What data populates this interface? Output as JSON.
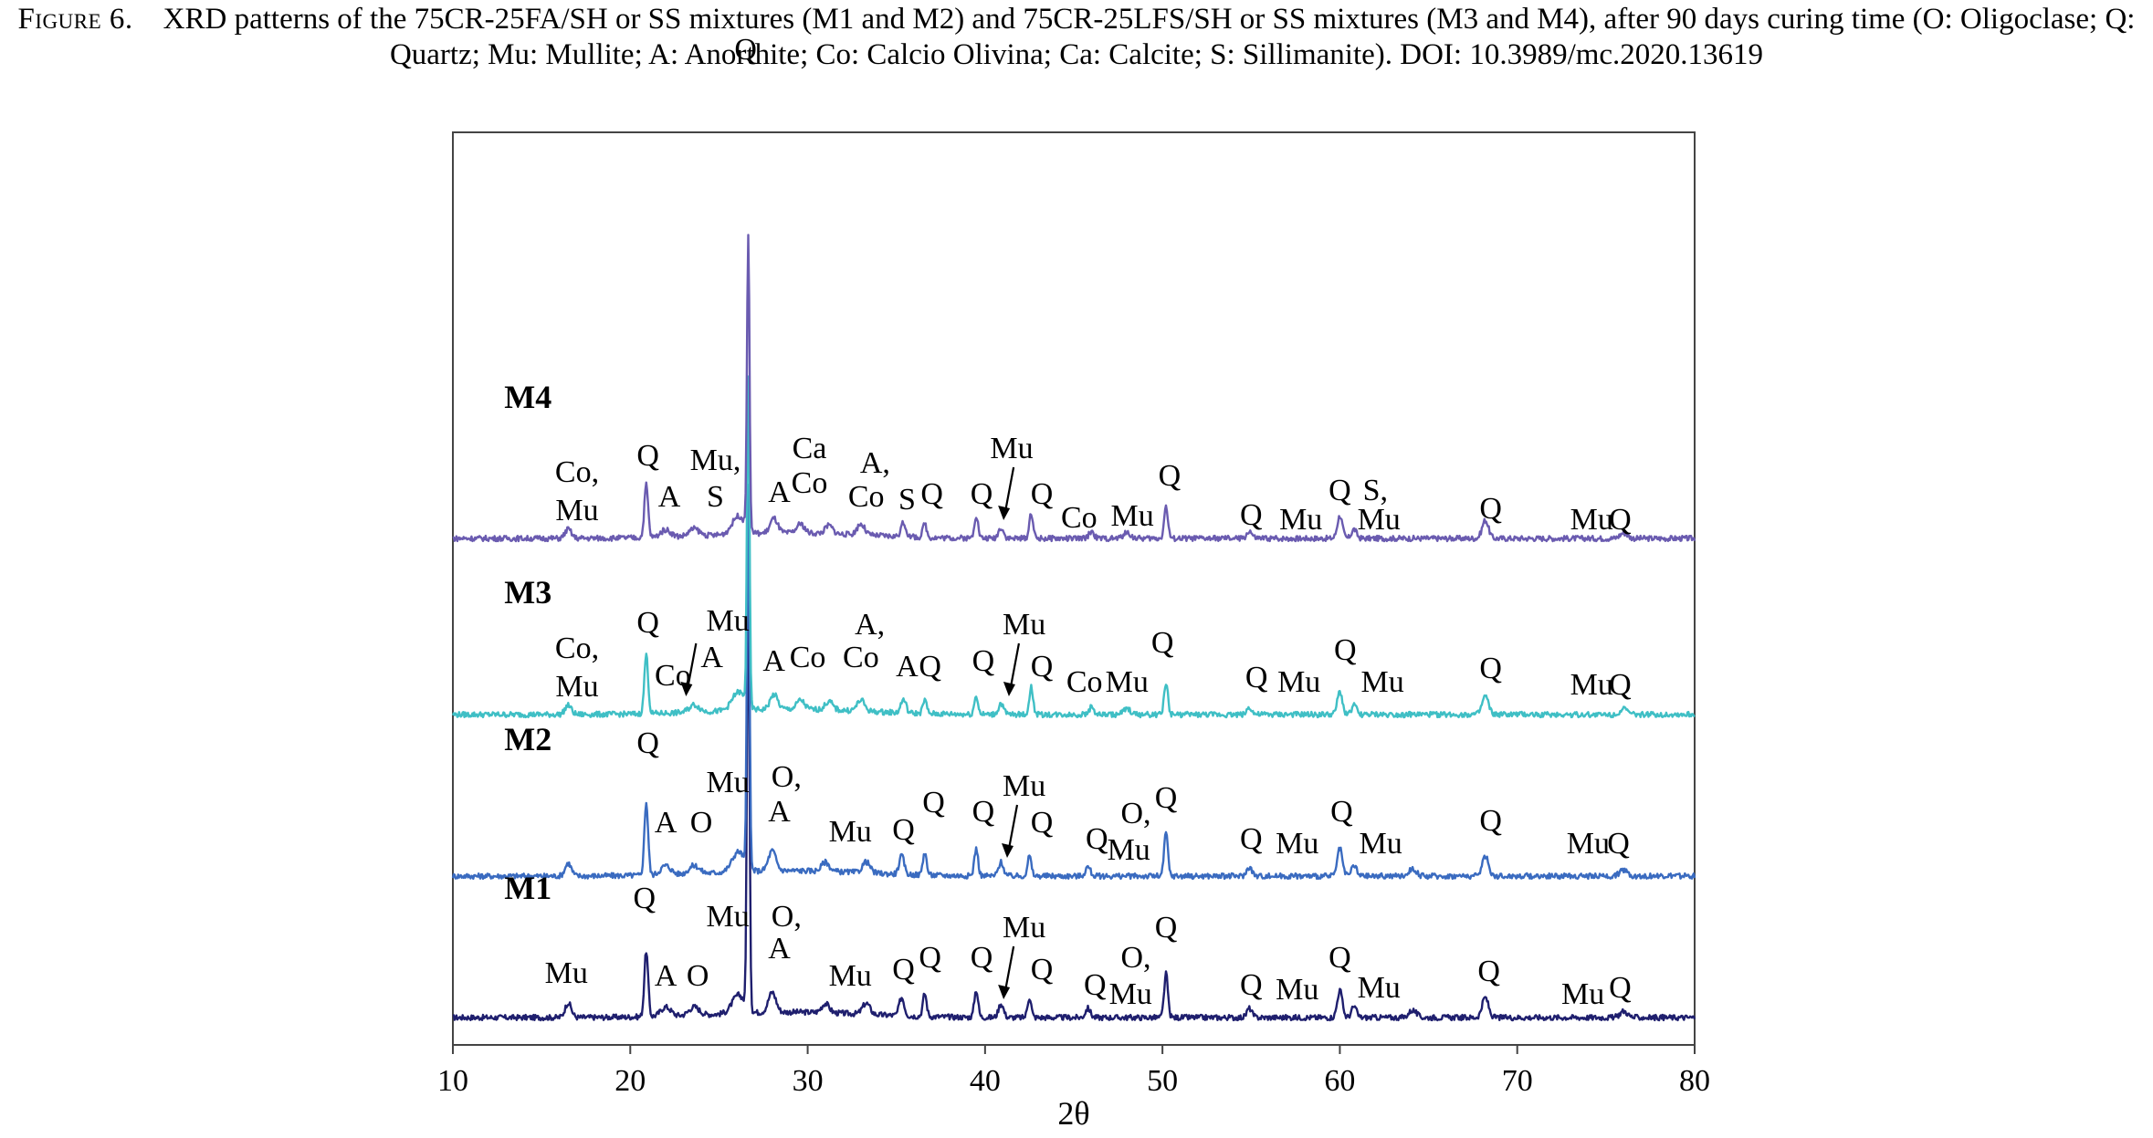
{
  "caption": {
    "label": "Figure 6.",
    "text": "XRD patterns of the 75CR-25FA/SH or SS mixtures (M1 and M2) and 75CR-25LFS/SH or SS mixtures (M3 and M4), after 90 days curing time (O: Oligoclase; Q: Quartz; Mu: Mullite; A: Anorthite; Co: Calcio Olivina; Ca: Calcite; S: Sillimanite). DOI: 10.3989/mc.2020.13619"
  },
  "chart_data": {
    "type": "line",
    "xlabel": "2θ",
    "ylabel": "",
    "xlim": [
      10,
      80
    ],
    "xticks": [
      10,
      20,
      30,
      40,
      50,
      60,
      70,
      80
    ],
    "y_axis_ticks": "none",
    "grid": false,
    "legend": "none",
    "series": [
      {
        "name": "M1",
        "color": "#1f1f6e",
        "baseline": 0,
        "noise": 1.0,
        "peaks": [
          [
            16.5,
            16,
            0.25
          ],
          [
            20.9,
            72,
            0.15
          ],
          [
            22.0,
            10,
            0.4
          ],
          [
            23.6,
            9,
            0.4
          ],
          [
            26.1,
            20,
            0.5
          ],
          [
            26.65,
            470,
            0.1
          ],
          [
            28.0,
            22,
            0.3
          ],
          [
            31.0,
            10,
            0.3
          ],
          [
            33.3,
            12,
            0.3
          ],
          [
            35.3,
            20,
            0.2
          ],
          [
            36.6,
            25,
            0.15
          ],
          [
            39.5,
            30,
            0.15
          ],
          [
            40.9,
            15,
            0.2
          ],
          [
            42.5,
            22,
            0.15
          ],
          [
            45.8,
            10,
            0.2
          ],
          [
            50.2,
            48,
            0.15
          ],
          [
            54.9,
            10,
            0.2
          ],
          [
            60.0,
            30,
            0.2
          ],
          [
            60.8,
            12,
            0.2
          ],
          [
            64.1,
            8,
            0.3
          ],
          [
            68.2,
            22,
            0.25
          ],
          [
            76.0,
            7,
            0.3
          ]
        ]
      },
      {
        "name": "M2",
        "color": "#3a6bc0",
        "baseline": 0,
        "noise": 1.0,
        "peaks": [
          [
            16.5,
            14,
            0.25
          ],
          [
            20.9,
            80,
            0.15
          ],
          [
            22.0,
            10,
            0.4
          ],
          [
            23.6,
            9,
            0.4
          ],
          [
            26.1,
            22,
            0.5
          ],
          [
            26.65,
            420,
            0.1
          ],
          [
            28.0,
            22,
            0.3
          ],
          [
            31.0,
            10,
            0.3
          ],
          [
            33.3,
            12,
            0.3
          ],
          [
            35.3,
            20,
            0.2
          ],
          [
            36.6,
            25,
            0.15
          ],
          [
            39.5,
            30,
            0.15
          ],
          [
            40.9,
            15,
            0.2
          ],
          [
            42.5,
            22,
            0.15
          ],
          [
            45.8,
            10,
            0.2
          ],
          [
            50.2,
            48,
            0.15
          ],
          [
            54.9,
            10,
            0.2
          ],
          [
            60.0,
            30,
            0.2
          ],
          [
            60.8,
            12,
            0.2
          ],
          [
            64.1,
            8,
            0.3
          ],
          [
            68.2,
            22,
            0.25
          ],
          [
            76.0,
            7,
            0.3
          ]
        ]
      },
      {
        "name": "M3",
        "color": "#3fbfc5",
        "baseline": 0,
        "noise": 1.0,
        "peaks": [
          [
            16.5,
            10,
            0.25
          ],
          [
            20.9,
            65,
            0.15
          ],
          [
            23.6,
            8,
            0.4
          ],
          [
            26.1,
            20,
            0.5
          ],
          [
            26.65,
            360,
            0.1
          ],
          [
            28.1,
            16,
            0.3
          ],
          [
            29.6,
            10,
            0.3
          ],
          [
            31.2,
            9,
            0.3
          ],
          [
            33.0,
            12,
            0.3
          ],
          [
            35.4,
            15,
            0.2
          ],
          [
            36.6,
            15,
            0.15
          ],
          [
            39.5,
            20,
            0.15
          ],
          [
            40.9,
            12,
            0.2
          ],
          [
            42.6,
            30,
            0.15
          ],
          [
            46.0,
            8,
            0.2
          ],
          [
            48.0,
            6,
            0.3
          ],
          [
            50.2,
            35,
            0.15
          ],
          [
            54.9,
            8,
            0.2
          ],
          [
            60.0,
            25,
            0.2
          ],
          [
            60.8,
            10,
            0.2
          ],
          [
            68.2,
            20,
            0.25
          ],
          [
            76.0,
            6,
            0.3
          ]
        ]
      },
      {
        "name": "M4",
        "color": "#6a5bb0",
        "baseline": 0,
        "noise": 1.0,
        "peaks": [
          [
            16.5,
            10,
            0.25
          ],
          [
            20.9,
            58,
            0.15
          ],
          [
            22.0,
            8,
            0.4
          ],
          [
            23.6,
            8,
            0.4
          ],
          [
            26.1,
            20,
            0.5
          ],
          [
            26.65,
            320,
            0.1
          ],
          [
            28.1,
            16,
            0.3
          ],
          [
            29.6,
            10,
            0.3
          ],
          [
            31.2,
            9,
            0.3
          ],
          [
            33.0,
            12,
            0.3
          ],
          [
            35.4,
            15,
            0.2
          ],
          [
            36.6,
            15,
            0.15
          ],
          [
            39.5,
            25,
            0.15
          ],
          [
            40.9,
            12,
            0.2
          ],
          [
            42.6,
            28,
            0.15
          ],
          [
            46.0,
            8,
            0.2
          ],
          [
            48.0,
            6,
            0.3
          ],
          [
            50.2,
            35,
            0.15
          ],
          [
            54.9,
            8,
            0.2
          ],
          [
            60.0,
            25,
            0.2
          ],
          [
            60.8,
            10,
            0.2
          ],
          [
            68.2,
            20,
            0.25
          ],
          [
            76.0,
            6,
            0.3
          ]
        ]
      }
    ],
    "annotations": [
      {
        "text": "Q",
        "x": 26.5,
        "series": "M4",
        "dy": -525
      },
      {
        "text": "M4",
        "x": 12.9,
        "series": "M4",
        "dy": -143,
        "bold": true
      },
      {
        "text": "Co,",
        "x": 17.0,
        "series": "M4",
        "dy": -62
      },
      {
        "text": "Mu",
        "x": 17.0,
        "series": "M4",
        "dy": -20
      },
      {
        "text": "Q",
        "x": 21.0,
        "series": "M4",
        "dy": -80
      },
      {
        "text": "A",
        "x": 22.2,
        "series": "M4",
        "dy": -35
      },
      {
        "text": "Mu,",
        "x": 24.8,
        "series": "M4",
        "dy": -75
      },
      {
        "text": "S",
        "x": 24.8,
        "series": "M4",
        "dy": -35
      },
      {
        "text": "A",
        "x": 28.4,
        "series": "M4",
        "dy": -40
      },
      {
        "text": "Ca",
        "x": 30.1,
        "series": "M4",
        "dy": -88
      },
      {
        "text": "Co",
        "x": 30.1,
        "series": "M4",
        "dy": -50
      },
      {
        "text": "A,",
        "x": 33.8,
        "series": "M4",
        "dy": -72
      },
      {
        "text": "Co",
        "x": 33.3,
        "series": "M4",
        "dy": -35
      },
      {
        "text": "S",
        "x": 35.6,
        "series": "M4",
        "dy": -32
      },
      {
        "text": "Q",
        "x": 37.0,
        "series": "M4",
        "dy": -38
      },
      {
        "text": "Mu",
        "x": 41.5,
        "series": "M4",
        "dy": -88
      },
      {
        "text": "Q",
        "x": 39.8,
        "series": "M4",
        "dy": -38
      },
      {
        "text": "Q",
        "x": 43.2,
        "series": "M4",
        "dy": -38
      },
      {
        "text": "Co",
        "x": 45.3,
        "series": "M4",
        "dy": -12
      },
      {
        "text": "Mu",
        "x": 48.3,
        "series": "M4",
        "dy": -14
      },
      {
        "text": "Q",
        "x": 50.4,
        "series": "M4",
        "dy": -58
      },
      {
        "text": "Q",
        "x": 55.0,
        "series": "M4",
        "dy": -15
      },
      {
        "text": "Mu",
        "x": 57.8,
        "series": "M4",
        "dy": -10
      },
      {
        "text": "Q",
        "x": 60.0,
        "series": "M4",
        "dy": -42
      },
      {
        "text": "S,",
        "x": 62.0,
        "series": "M4",
        "dy": -42
      },
      {
        "text": "Mu",
        "x": 62.2,
        "series": "M4",
        "dy": -10
      },
      {
        "text": "Q",
        "x": 68.5,
        "series": "M4",
        "dy": -22
      },
      {
        "text": "Mu",
        "x": 74.2,
        "series": "M4",
        "dy": -10
      },
      {
        "text": "Q",
        "x": 75.8,
        "series": "M4",
        "dy": -10
      },
      {
        "text": "M3",
        "x": 12.9,
        "series": "M3",
        "dy": -122,
        "bold": true
      },
      {
        "text": "Co,",
        "x": 17.0,
        "series": "M3",
        "dy": -62
      },
      {
        "text": "Mu",
        "x": 17.0,
        "series": "M3",
        "dy": -20
      },
      {
        "text": "Q",
        "x": 21.0,
        "series": "M3",
        "dy": -90
      },
      {
        "text": "Co",
        "x": 22.4,
        "series": "M3",
        "dy": -32
      },
      {
        "text": "Mu",
        "x": 25.5,
        "series": "M3",
        "dy": -92
      },
      {
        "text": "A",
        "x": 24.6,
        "series": "M3",
        "dy": -52
      },
      {
        "text": "A",
        "x": 28.1,
        "series": "M3",
        "dy": -48
      },
      {
        "text": "Co",
        "x": 30.0,
        "series": "M3",
        "dy": -52
      },
      {
        "text": "A,",
        "x": 33.5,
        "series": "M3",
        "dy": -88
      },
      {
        "text": "Co",
        "x": 33.0,
        "series": "M3",
        "dy": -52
      },
      {
        "text": "A",
        "x": 35.6,
        "series": "M3",
        "dy": -42
      },
      {
        "text": "Q",
        "x": 36.9,
        "series": "M3",
        "dy": -42
      },
      {
        "text": "Mu",
        "x": 42.2,
        "series": "M3",
        "dy": -88
      },
      {
        "text": "Q",
        "x": 39.9,
        "series": "M3",
        "dy": -48
      },
      {
        "text": "Q",
        "x": 43.2,
        "series": "M3",
        "dy": -42
      },
      {
        "text": "Co",
        "x": 45.6,
        "series": "M3",
        "dy": -25
      },
      {
        "text": "Mu",
        "x": 48.0,
        "series": "M3",
        "dy": -25
      },
      {
        "text": "Q",
        "x": 50.0,
        "series": "M3",
        "dy": -68
      },
      {
        "text": "Q",
        "x": 55.3,
        "series": "M3",
        "dy": -30
      },
      {
        "text": "Mu",
        "x": 57.7,
        "series": "M3",
        "dy": -25
      },
      {
        "text": "Q",
        "x": 60.3,
        "series": "M3",
        "dy": -60
      },
      {
        "text": "Mu",
        "x": 62.4,
        "series": "M3",
        "dy": -25
      },
      {
        "text": "Q",
        "x": 68.5,
        "series": "M3",
        "dy": -40
      },
      {
        "text": "Mu",
        "x": 74.2,
        "series": "M3",
        "dy": -22
      },
      {
        "text": "Q",
        "x": 75.8,
        "series": "M3",
        "dy": -22
      },
      {
        "text": "M2",
        "x": 12.9,
        "series": "M2",
        "dy": -138,
        "bold": true
      },
      {
        "text": "Q",
        "x": 21.0,
        "series": "M2",
        "dy": -135
      },
      {
        "text": "Mu",
        "x": 25.5,
        "series": "M2",
        "dy": -92
      },
      {
        "text": "A",
        "x": 22.0,
        "series": "M2",
        "dy": -48
      },
      {
        "text": "O",
        "x": 24.0,
        "series": "M2",
        "dy": -48
      },
      {
        "text": "O,",
        "x": 28.8,
        "series": "M2",
        "dy": -98
      },
      {
        "text": "A",
        "x": 28.4,
        "series": "M2",
        "dy": -60
      },
      {
        "text": "Mu",
        "x": 32.4,
        "series": "M2",
        "dy": -38
      },
      {
        "text": "Q",
        "x": 35.4,
        "series": "M2",
        "dy": -40
      },
      {
        "text": "Q",
        "x": 37.1,
        "series": "M2",
        "dy": -70
      },
      {
        "text": "Mu",
        "x": 42.2,
        "series": "M2",
        "dy": -88
      },
      {
        "text": "Q",
        "x": 39.9,
        "series": "M2",
        "dy": -60
      },
      {
        "text": "Q",
        "x": 43.2,
        "series": "M2",
        "dy": -48
      },
      {
        "text": "Q",
        "x": 46.3,
        "series": "M2",
        "dy": -30
      },
      {
        "text": "O,",
        "x": 48.5,
        "series": "M2",
        "dy": -58
      },
      {
        "text": "Mu",
        "x": 48.1,
        "series": "M2",
        "dy": -18
      },
      {
        "text": "Q",
        "x": 50.2,
        "series": "M2",
        "dy": -75
      },
      {
        "text": "Q",
        "x": 55.0,
        "series": "M2",
        "dy": -30
      },
      {
        "text": "Mu",
        "x": 57.6,
        "series": "M2",
        "dy": -25
      },
      {
        "text": "Q",
        "x": 60.1,
        "series": "M2",
        "dy": -60
      },
      {
        "text": "Mu",
        "x": 62.3,
        "series": "M2",
        "dy": -25
      },
      {
        "text": "Q",
        "x": 68.5,
        "series": "M2",
        "dy": -50
      },
      {
        "text": "Mu",
        "x": 74.0,
        "series": "M2",
        "dy": -25
      },
      {
        "text": "Q",
        "x": 75.7,
        "series": "M2",
        "dy": -25
      },
      {
        "text": "M1",
        "x": 12.9,
        "series": "M1",
        "dy": -130,
        "bold": true
      },
      {
        "text": "Q",
        "x": 20.8,
        "series": "M1",
        "dy": -120
      },
      {
        "text": "Mu",
        "x": 16.4,
        "series": "M1",
        "dy": -38
      },
      {
        "text": "A",
        "x": 22.0,
        "series": "M1",
        "dy": -35
      },
      {
        "text": "O",
        "x": 23.8,
        "series": "M1",
        "dy": -35
      },
      {
        "text": "Mu",
        "x": 25.5,
        "series": "M1",
        "dy": -100
      },
      {
        "text": "O,",
        "x": 28.8,
        "series": "M1",
        "dy": -100
      },
      {
        "text": "A",
        "x": 28.4,
        "series": "M1",
        "dy": -65
      },
      {
        "text": "Mu",
        "x": 32.4,
        "series": "M1",
        "dy": -35
      },
      {
        "text": "Q",
        "x": 35.4,
        "series": "M1",
        "dy": -42
      },
      {
        "text": "Q",
        "x": 36.9,
        "series": "M1",
        "dy": -55
      },
      {
        "text": "Mu",
        "x": 42.2,
        "series": "M1",
        "dy": -88
      },
      {
        "text": "Q",
        "x": 39.8,
        "series": "M1",
        "dy": -55
      },
      {
        "text": "Q",
        "x": 43.2,
        "series": "M1",
        "dy": -42
      },
      {
        "text": "Q",
        "x": 46.2,
        "series": "M1",
        "dy": -25
      },
      {
        "text": "O,",
        "x": 48.5,
        "series": "M1",
        "dy": -55
      },
      {
        "text": "Mu",
        "x": 48.2,
        "series": "M1",
        "dy": -15
      },
      {
        "text": "Q",
        "x": 50.2,
        "series": "M1",
        "dy": -88
      },
      {
        "text": "Q",
        "x": 55.0,
        "series": "M1",
        "dy": -25
      },
      {
        "text": "Mu",
        "x": 57.6,
        "series": "M1",
        "dy": -20
      },
      {
        "text": "Q",
        "x": 60.0,
        "series": "M1",
        "dy": -55
      },
      {
        "text": "Mu",
        "x": 62.2,
        "series": "M1",
        "dy": -22
      },
      {
        "text": "Q",
        "x": 68.4,
        "series": "M1",
        "dy": -40
      },
      {
        "text": "Mu",
        "x": 73.7,
        "series": "M1",
        "dy": -15
      },
      {
        "text": "Q",
        "x": 75.8,
        "series": "M1",
        "dy": -22
      }
    ],
    "arrows": [
      {
        "series": "M4",
        "x": 41.3
      },
      {
        "series": "M3",
        "x": 41.6
      },
      {
        "series": "M3",
        "x": 23.4
      },
      {
        "series": "M2",
        "x": 41.5
      },
      {
        "series": "M1",
        "x": 41.3
      }
    ]
  }
}
